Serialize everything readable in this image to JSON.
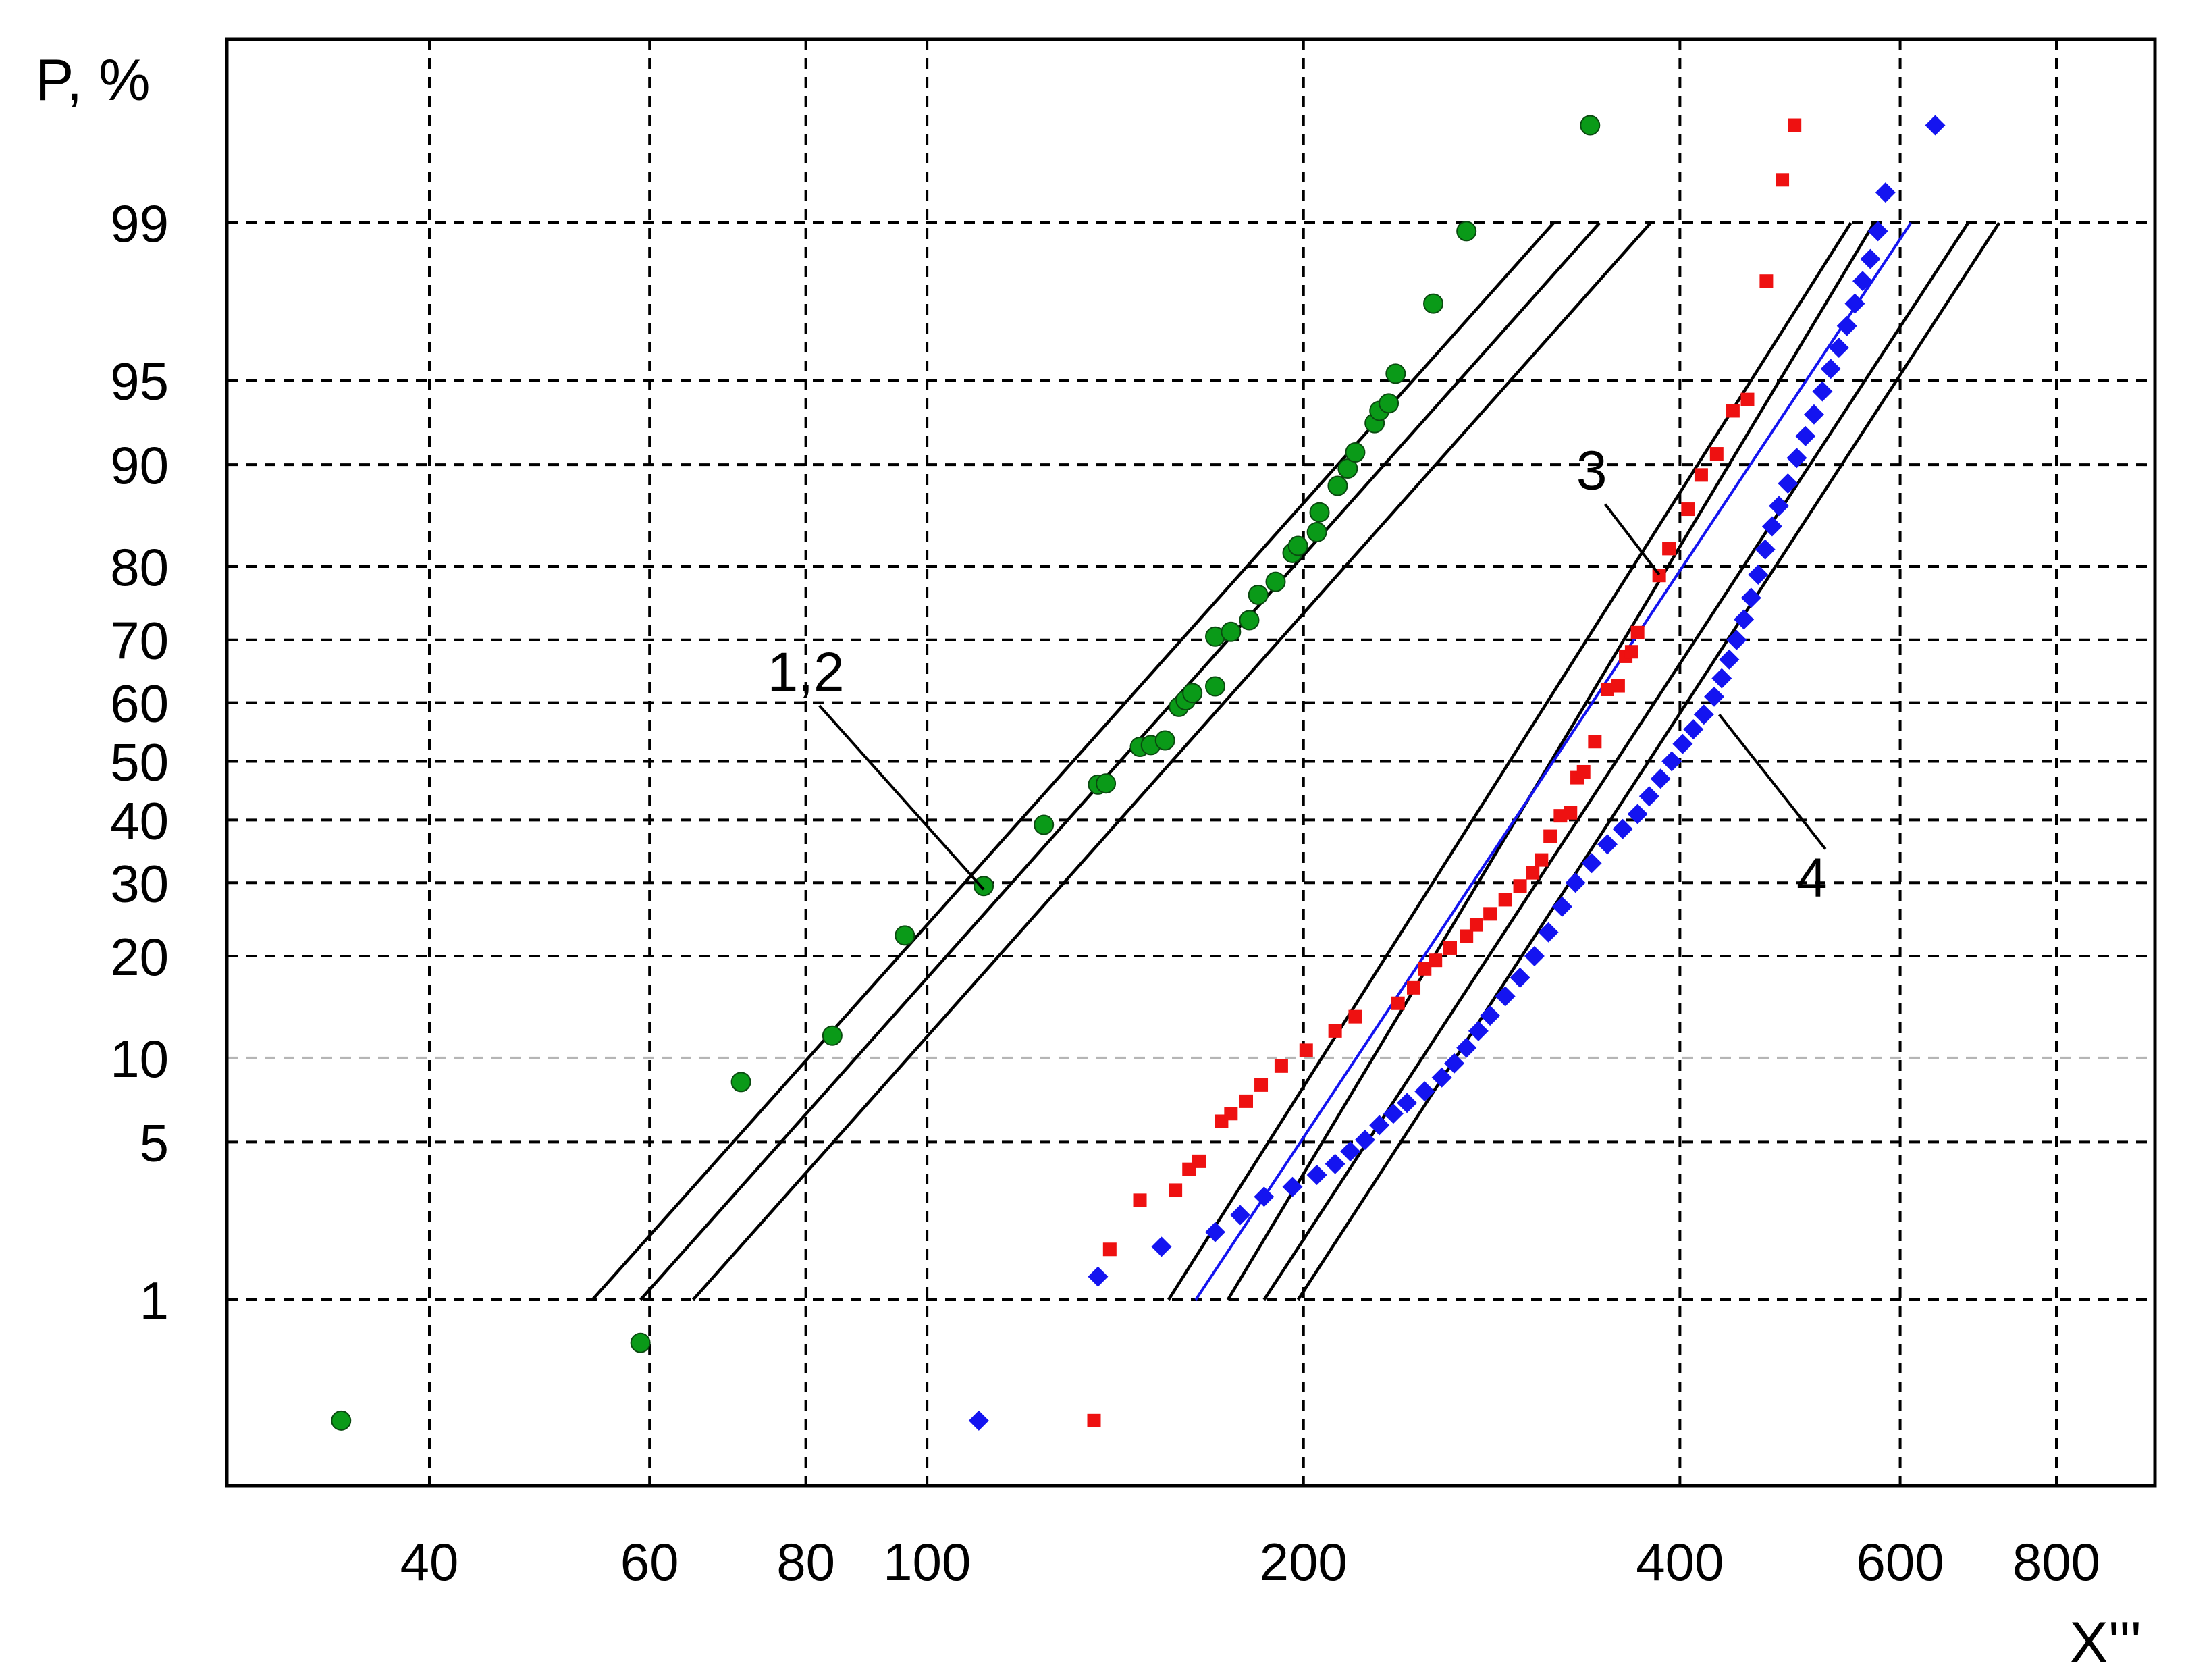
{
  "chart_data": {
    "type": "scatter",
    "title": "",
    "xlabel": "X'''",
    "ylabel": "P, %",
    "x_scale": "log",
    "y_scale": "normal-probability",
    "xlim": [
      28,
      900
    ],
    "x_ticks": [
      {
        "value": 40,
        "label": "40"
      },
      {
        "value": 60,
        "label": "60"
      },
      {
        "value": 80,
        "label": "80"
      },
      {
        "value": 100,
        "label": "100"
      },
      {
        "value": 200,
        "label": "200"
      },
      {
        "value": 400,
        "label": "400"
      },
      {
        "value": 600,
        "label": "600"
      },
      {
        "value": 800,
        "label": "800"
      }
    ],
    "y_ticks": [
      {
        "value": 1,
        "label": "1"
      },
      {
        "value": 5,
        "label": "5"
      },
      {
        "value": 10,
        "label": "10"
      },
      {
        "value": 20,
        "label": "20"
      },
      {
        "value": 30,
        "label": "30"
      },
      {
        "value": 40,
        "label": "40"
      },
      {
        "value": 50,
        "label": "50"
      },
      {
        "value": 60,
        "label": "60"
      },
      {
        "value": 70,
        "label": "70"
      },
      {
        "value": 80,
        "label": "80"
      },
      {
        "value": 90,
        "label": "90"
      },
      {
        "value": 95,
        "label": "95"
      },
      {
        "value": 99,
        "label": "99"
      }
    ],
    "grid": true,
    "annotations": [
      {
        "text": "1,2",
        "text_at": [
          80,
          62
        ],
        "points_to": [
          111,
          29
        ]
      },
      {
        "text": "3",
        "text_at": [
          340,
          88
        ],
        "points_to": [
          385,
          79
        ]
      },
      {
        "text": "4",
        "text_at": [
          510,
          28
        ],
        "points_to": [
          430,
          58
        ]
      }
    ],
    "series": [
      {
        "color": "#0a9a18",
        "marker": "circle",
        "points": [
          [
            34,
            0.22
          ],
          [
            59,
            0.6
          ],
          [
            71,
            8.3
          ],
          [
            84,
            11.8
          ],
          [
            96,
            22.6
          ],
          [
            111,
            29.5
          ],
          [
            124,
            39.2
          ],
          [
            137,
            46
          ],
          [
            139,
            46.2
          ],
          [
            148,
            52.5
          ],
          [
            151,
            52.8
          ],
          [
            155,
            53.6
          ],
          [
            159,
            59.3
          ],
          [
            161,
            60.4
          ],
          [
            163,
            61.6
          ],
          [
            170,
            62.7
          ],
          [
            170,
            70.5
          ],
          [
            175,
            71.2
          ],
          [
            181,
            72.9
          ],
          [
            184,
            76.4
          ],
          [
            190,
            78.1
          ],
          [
            196,
            81.6
          ],
          [
            198,
            82.4
          ],
          [
            205,
            83.9
          ],
          [
            206,
            85.9
          ],
          [
            213,
            88.3
          ],
          [
            217,
            89.7
          ],
          [
            220,
            90.9
          ],
          [
            228,
            92.8
          ],
          [
            230,
            93.5
          ],
          [
            234,
            93.9
          ],
          [
            237,
            95.3
          ],
          [
            254,
            97.6
          ],
          [
            270,
            98.9
          ],
          [
            339,
            99.7
          ]
        ]
      },
      {
        "color": "#ee1111",
        "marker": "square",
        "points": [
          [
            136,
            0.22
          ],
          [
            140,
            1.75
          ],
          [
            148,
            2.9
          ],
          [
            158,
            3.2
          ],
          [
            162,
            3.9
          ],
          [
            165,
            4.2
          ],
          [
            172,
            6.0
          ],
          [
            175,
            6.4
          ],
          [
            180,
            7.1
          ],
          [
            185,
            8.1
          ],
          [
            192,
            9.4
          ],
          [
            201,
            10.6
          ],
          [
            212,
            12.2
          ],
          [
            220,
            13.5
          ],
          [
            238,
            14.8
          ],
          [
            245,
            16.4
          ],
          [
            250,
            18.5
          ],
          [
            255,
            19.5
          ],
          [
            262,
            21
          ],
          [
            270,
            22.5
          ],
          [
            275,
            24
          ],
          [
            282,
            25.5
          ],
          [
            290,
            27.5
          ],
          [
            298,
            29.5
          ],
          [
            305,
            31.5
          ],
          [
            310,
            33.5
          ],
          [
            315,
            37.3
          ],
          [
            321,
            40.7
          ],
          [
            327,
            41.2
          ],
          [
            331,
            47.2
          ],
          [
            335,
            48.2
          ],
          [
            342,
            53.4
          ],
          [
            350,
            62.2
          ],
          [
            357,
            62.8
          ],
          [
            362,
            67.5
          ],
          [
            366,
            68.2
          ],
          [
            370,
            71.1
          ],
          [
            385,
            78.9
          ],
          [
            392,
            82.1
          ],
          [
            406,
            86.2
          ],
          [
            416,
            89.2
          ],
          [
            428,
            90.8
          ],
          [
            441,
            93.5
          ],
          [
            453,
            94.1
          ],
          [
            469,
            98.1
          ],
          [
            483,
            99.4
          ],
          [
            494,
            99.7
          ]
        ]
      },
      {
        "color": "#1414f0",
        "marker": "diamond",
        "points": [
          [
            110,
            0.22
          ],
          [
            137,
            1.3
          ],
          [
            154,
            1.8
          ],
          [
            170,
            2.1
          ],
          [
            178,
            2.5
          ],
          [
            186,
            3.0
          ],
          [
            196,
            3.3
          ],
          [
            205,
            3.7
          ],
          [
            212,
            4.1
          ],
          [
            218,
            4.6
          ],
          [
            224,
            5.1
          ],
          [
            230,
            5.8
          ],
          [
            236,
            6.4
          ],
          [
            242,
            7.0
          ],
          [
            250,
            7.7
          ],
          [
            258,
            8.6
          ],
          [
            264,
            9.6
          ],
          [
            270,
            10.8
          ],
          [
            276,
            12.2
          ],
          [
            282,
            13.6
          ],
          [
            290,
            15.5
          ],
          [
            298,
            17.5
          ],
          [
            306,
            20
          ],
          [
            314,
            23
          ],
          [
            322,
            26.5
          ],
          [
            330,
            30
          ],
          [
            340,
            33
          ],
          [
            350,
            36
          ],
          [
            360,
            38.5
          ],
          [
            370,
            41
          ],
          [
            378,
            44
          ],
          [
            386,
            47
          ],
          [
            394,
            50
          ],
          [
            402,
            53
          ],
          [
            410,
            55.5
          ],
          [
            418,
            58
          ],
          [
            426,
            61
          ],
          [
            432,
            64
          ],
          [
            438,
            67
          ],
          [
            444,
            70
          ],
          [
            450,
            73
          ],
          [
            456,
            76
          ],
          [
            462,
            79
          ],
          [
            468,
            82
          ],
          [
            474,
            84.5
          ],
          [
            480,
            86.5
          ],
          [
            488,
            88.5
          ],
          [
            496,
            90.5
          ],
          [
            504,
            92
          ],
          [
            512,
            93.3
          ],
          [
            520,
            94.5
          ],
          [
            528,
            95.5
          ],
          [
            536,
            96.3
          ],
          [
            544,
            97
          ],
          [
            552,
            97.6
          ],
          [
            560,
            98.1
          ],
          [
            568,
            98.5
          ],
          [
            576,
            98.9
          ],
          [
            584,
            99.3
          ],
          [
            640,
            99.7
          ]
        ]
      },
      {
        "color": "#000000",
        "marker": "line",
        "lines": [
          [
            [
              54,
              1
            ],
            [
              317,
              99
            ]
          ],
          [
            [
              59,
              1
            ],
            [
              345,
              99
            ]
          ],
          [
            [
              65,
              1
            ],
            [
              379,
              99
            ]
          ],
          [
            [
              156,
              1
            ],
            [
              548,
              99
            ]
          ],
          [
            [
              174,
              1
            ],
            [
              572,
              99
            ]
          ],
          [
            [
              186,
              1
            ],
            [
              680,
              99
            ]
          ],
          [
            [
              198,
              1
            ],
            [
              720,
              99
            ]
          ]
        ]
      },
      {
        "color": "#1414f0",
        "marker": "line",
        "lines": [
          [
            [
              164,
              1
            ],
            [
              612,
              99
            ]
          ]
        ]
      }
    ]
  }
}
